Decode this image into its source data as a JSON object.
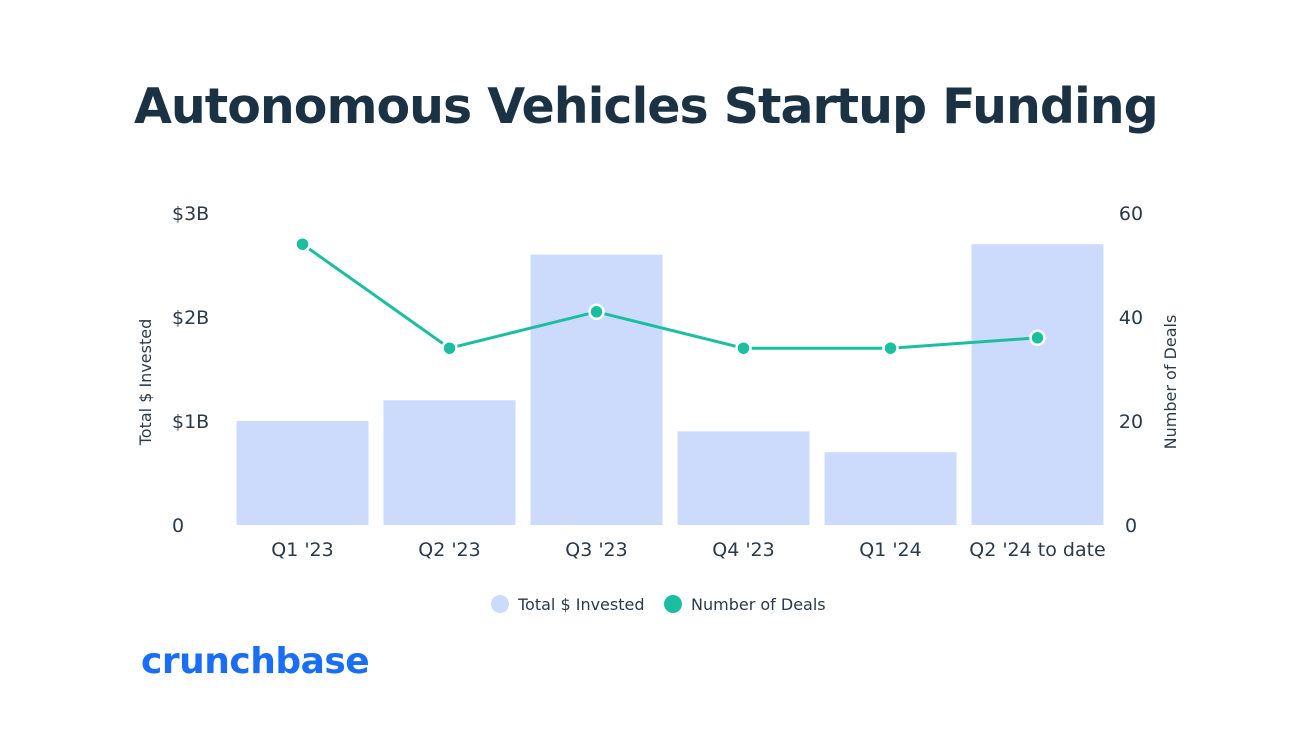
{
  "colors": {
    "title": "#1b3144",
    "text": "#2b3a48",
    "bar": "#ccdbfc",
    "line": "#1bbf9f",
    "marker_stroke": "#ffffff",
    "brand": "#1a6ef5"
  },
  "brand": {
    "name": "crunchbase"
  },
  "chart_data": {
    "type": "bar",
    "title": "Autonomous Vehicles Startup Funding",
    "categories": [
      "Q1 '23",
      "Q2 '23",
      "Q3 '23",
      "Q4 '23",
      "Q1 '24",
      "Q2 '24 to date"
    ],
    "series": [
      {
        "name": "Total $ Invested",
        "type": "bar",
        "axis": "left",
        "unit": "$B",
        "values": [
          1.0,
          1.2,
          2.6,
          0.9,
          0.7,
          2.7
        ]
      },
      {
        "name": "Number of Deals",
        "type": "line",
        "axis": "right",
        "values": [
          54,
          34,
          41,
          34,
          34,
          36
        ]
      }
    ],
    "ylabel": "Total $ Invested",
    "ylabel_right": "Number of Deals",
    "ylim": [
      0,
      3
    ],
    "ylim_right": [
      0,
      60
    ],
    "yticks": [
      {
        "value": 0,
        "label": "0"
      },
      {
        "value": 1,
        "label": "$1B"
      },
      {
        "value": 2,
        "label": "$2B"
      },
      {
        "value": 3,
        "label": "$3B"
      }
    ],
    "yticks_right": [
      {
        "value": 0,
        "label": "0"
      },
      {
        "value": 20,
        "label": "20"
      },
      {
        "value": 40,
        "label": "40"
      },
      {
        "value": 60,
        "label": "60"
      }
    ],
    "grid": false,
    "legend": "bottom-center"
  }
}
